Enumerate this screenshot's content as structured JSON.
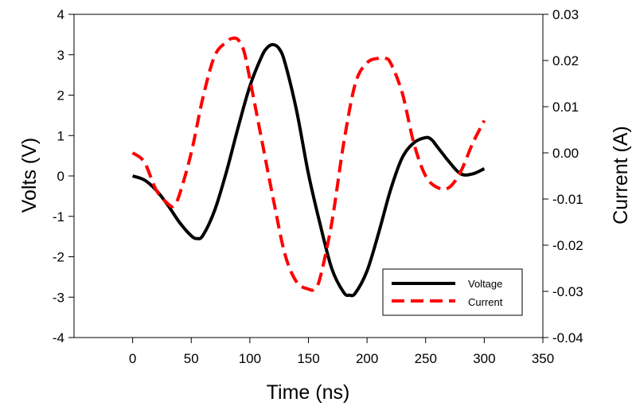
{
  "chart_data": {
    "type": "line",
    "xlabel": "Time (ns)",
    "ylabel": "Volts (V)",
    "y2label": "Current (A)",
    "xlim": [
      -50,
      350
    ],
    "ylim": [
      -4,
      4
    ],
    "y2lim": [
      -0.04,
      0.03
    ],
    "x_ticks": [
      0,
      50,
      100,
      150,
      200,
      250,
      300,
      350
    ],
    "y_ticks": [
      -4,
      -3,
      -2,
      -1,
      0,
      1,
      2,
      3,
      4
    ],
    "y2_ticks": [
      "-0.04",
      "-0.03",
      "-0.02",
      "-0.01",
      "0.00",
      "0.01",
      "0.02",
      "0.03"
    ],
    "grid": false,
    "legend_position": "bottom-right",
    "series": [
      {
        "name": "Voltage",
        "axis": "left",
        "color": "#000000",
        "style": "solid",
        "x": [
          0,
          10,
          20,
          30,
          40,
          50,
          55,
          60,
          70,
          80,
          90,
          100,
          110,
          115,
          120,
          125,
          130,
          140,
          150,
          160,
          170,
          180,
          185,
          190,
          200,
          210,
          220,
          230,
          240,
          250,
          255,
          260,
          270,
          280,
          290,
          300
        ],
        "values": [
          0,
          -0.1,
          -0.35,
          -0.72,
          -1.15,
          -1.48,
          -1.55,
          -1.47,
          -0.85,
          0.1,
          1.2,
          2.22,
          2.95,
          3.18,
          3.25,
          3.15,
          2.8,
          1.6,
          0.05,
          -1.2,
          -2.3,
          -2.88,
          -2.95,
          -2.9,
          -2.35,
          -1.4,
          -0.35,
          0.45,
          0.82,
          0.95,
          0.9,
          0.72,
          0.35,
          0.05,
          0.05,
          0.18
        ]
      },
      {
        "name": "Current",
        "axis": "right",
        "color": "#ff0000",
        "style": "dashed",
        "x": [
          0,
          10,
          20,
          30,
          35,
          40,
          50,
          60,
          70,
          80,
          85,
          90,
          95,
          100,
          110,
          120,
          130,
          140,
          150,
          155,
          160,
          170,
          180,
          190,
          200,
          210,
          215,
          220,
          230,
          240,
          250,
          260,
          270,
          280,
          290,
          300
        ],
        "values": [
          0.0,
          -0.002,
          -0.008,
          -0.011,
          -0.0115,
          -0.009,
          0.0,
          0.012,
          0.021,
          0.024,
          0.0248,
          0.0245,
          0.022,
          0.016,
          0.003,
          -0.01,
          -0.022,
          -0.028,
          -0.0295,
          -0.0295,
          -0.027,
          -0.015,
          0.002,
          0.015,
          0.0195,
          0.0205,
          0.0205,
          0.0195,
          0.013,
          0.002,
          -0.005,
          -0.0075,
          -0.0075,
          -0.004,
          0.002,
          0.007
        ]
      }
    ]
  }
}
